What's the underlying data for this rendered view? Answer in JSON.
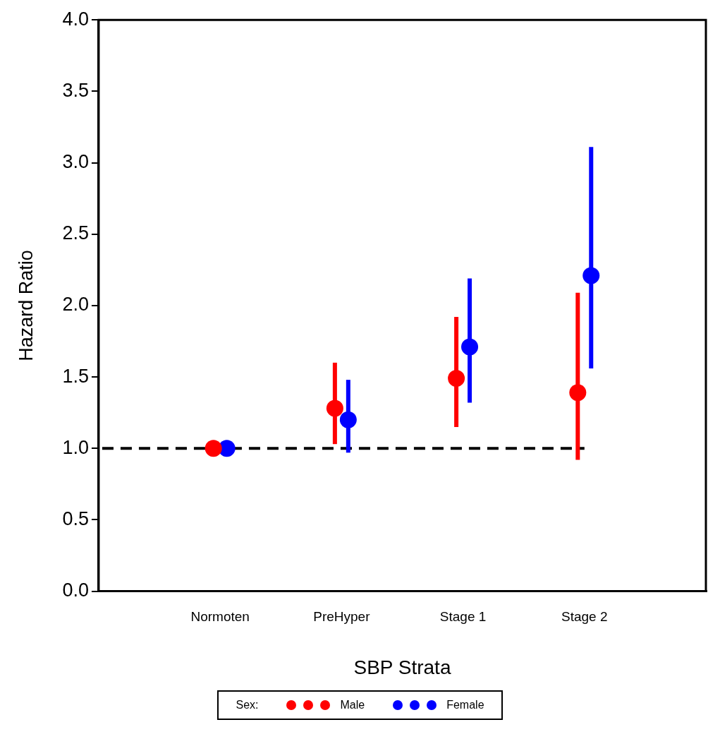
{
  "chart_data": {
    "type": "scatter",
    "xlabel": "SBP Strata",
    "ylabel": "Hazard Ratio",
    "legend_title": "Sex:",
    "categories": [
      "Normoten",
      "PreHyper",
      "Stage 1",
      "Stage 2"
    ],
    "series": [
      {
        "name": "Male",
        "color": "#ff0000",
        "values": [
          1.0,
          1.28,
          1.49,
          1.39
        ],
        "errors": [
          null,
          [
            1.03,
            1.6
          ],
          [
            1.15,
            1.92
          ],
          [
            0.92,
            2.09
          ]
        ]
      },
      {
        "name": "Female",
        "color": "#0000ff",
        "values": [
          1.0,
          1.2,
          1.71,
          2.21
        ],
        "errors": [
          null,
          [
            0.97,
            1.48
          ],
          [
            1.32,
            2.19
          ],
          [
            1.56,
            3.11
          ]
        ]
      }
    ],
    "ylim": [
      0,
      4
    ],
    "yticks": [
      {
        "value": 0,
        "label": "0.0"
      },
      0.5,
      {
        "value": 1,
        "label": "1.0"
      },
      1.5,
      {
        "value": 2,
        "label": "2.0"
      },
      2.5,
      {
        "value": 3,
        "label": "3.0"
      },
      3.5,
      {
        "value": 4,
        "label": "4.0"
      }
    ],
    "ref_lines": [
      {
        "axis": "y",
        "value": 1.0,
        "color": "#000000",
        "line_style": "dashed"
      }
    ],
    "grid": false,
    "legend": "bottom",
    "marker": "circle"
  }
}
